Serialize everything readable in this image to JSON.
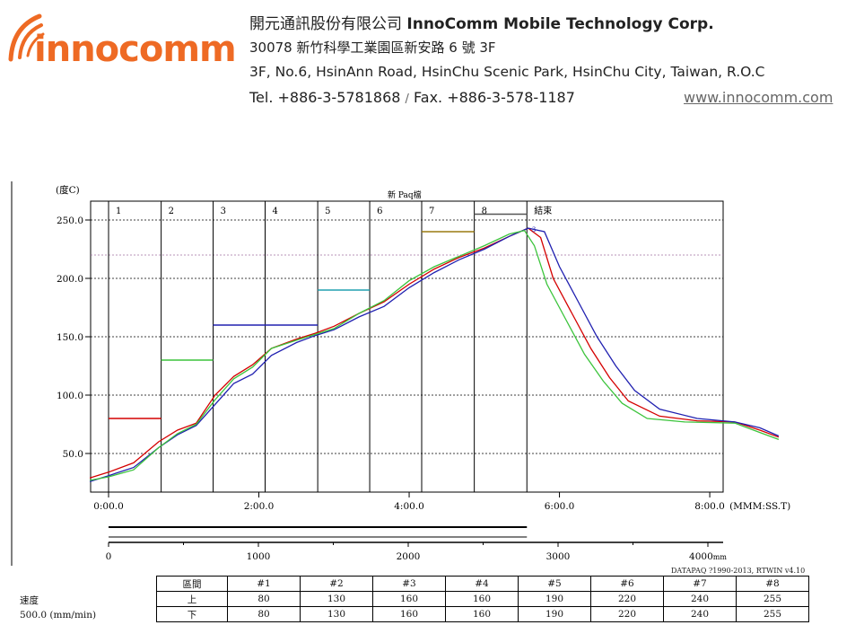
{
  "header": {
    "company_cn": "開元通訊股份有限公司",
    "company_en": "InnoComm Mobile Technology Corp.",
    "address_cn": "30078 新竹科學工業園區新安路 6 號 3F",
    "address_en": "3F, No.6, HsinAnn Road, HsinChu Scenic Park, HsinChu City, Taiwan, R.O.C",
    "tel": "Tel. +886-3-5781868",
    "sep": "/",
    "fax": "Fax. +886-3-578-1187",
    "website": "www.innocomm.com",
    "logo_text": "innocomm"
  },
  "chart_data": {
    "type": "line",
    "title": "新 Paq檔",
    "ylabel": "(度C)",
    "xlabel": "(MMM:SS.T)",
    "x_unit": "seconds",
    "xlim": [
      -22,
      540
    ],
    "ylim": [
      25,
      270
    ],
    "y_ticks": [
      "250.0",
      "200.0",
      "150.0",
      "100.0",
      "50.0"
    ],
    "y_tick_values": [
      250,
      200,
      150,
      100,
      50
    ],
    "x_tick_labels": [
      "0:00.0",
      "2:00.0",
      "4:00.0",
      "6:00.0",
      "8:00.0"
    ],
    "x_tick_values": [
      0,
      120,
      240,
      360,
      480
    ],
    "reference_line": 220,
    "zones": [
      "1",
      "2",
      "3",
      "4",
      "5",
      "6",
      "7",
      "8",
      "結束"
    ],
    "zone_boundaries": [
      0,
      42,
      83.5,
      125,
      167,
      208.5,
      250,
      292,
      334
    ],
    "zone_setpoints": [
      {
        "zone": "1",
        "value": 80,
        "color": "#d40000"
      },
      {
        "zone": "2",
        "value": 130,
        "color": "#3cc43c"
      },
      {
        "zone": "3-4",
        "value": 160,
        "color": "#2020b0"
      },
      {
        "zone": "5",
        "value": 190,
        "color": "#20a0b0"
      },
      {
        "zone": "7",
        "value": 240,
        "color": "#9a7a10"
      },
      {
        "zone": "8",
        "value": 255,
        "color": "#555555"
      }
    ],
    "peak_marker": "3",
    "series": [
      {
        "color": "#d40000",
        "points": [
          [
            -15,
            29
          ],
          [
            0,
            34
          ],
          [
            20,
            42
          ],
          [
            40,
            60
          ],
          [
            55,
            70
          ],
          [
            70,
            76
          ],
          [
            85,
            100
          ],
          [
            100,
            116
          ],
          [
            115,
            126
          ],
          [
            130,
            140
          ],
          [
            150,
            148
          ],
          [
            165,
            153
          ],
          [
            180,
            159
          ],
          [
            200,
            170
          ],
          [
            220,
            180
          ],
          [
            240,
            195
          ],
          [
            260,
            208
          ],
          [
            280,
            218
          ],
          [
            300,
            226
          ],
          [
            320,
            236
          ],
          [
            335,
            243
          ],
          [
            345,
            235
          ],
          [
            355,
            200
          ],
          [
            370,
            170
          ],
          [
            385,
            140
          ],
          [
            400,
            115
          ],
          [
            415,
            95
          ],
          [
            440,
            82
          ],
          [
            470,
            78
          ],
          [
            500,
            77
          ],
          [
            520,
            70
          ],
          [
            535,
            64
          ]
        ]
      },
      {
        "color": "#2020b0",
        "points": [
          [
            -15,
            26
          ],
          [
            0,
            31
          ],
          [
            20,
            38
          ],
          [
            40,
            55
          ],
          [
            55,
            66
          ],
          [
            70,
            74
          ],
          [
            85,
            92
          ],
          [
            100,
            110
          ],
          [
            115,
            118
          ],
          [
            130,
            134
          ],
          [
            150,
            145
          ],
          [
            165,
            151
          ],
          [
            180,
            156
          ],
          [
            200,
            167
          ],
          [
            220,
            176
          ],
          [
            240,
            192
          ],
          [
            260,
            205
          ],
          [
            280,
            216
          ],
          [
            300,
            225
          ],
          [
            320,
            236
          ],
          [
            335,
            243
          ],
          [
            348,
            240
          ],
          [
            360,
            210
          ],
          [
            375,
            180
          ],
          [
            390,
            150
          ],
          [
            405,
            125
          ],
          [
            420,
            104
          ],
          [
            440,
            88
          ],
          [
            470,
            80
          ],
          [
            500,
            77
          ],
          [
            520,
            72
          ],
          [
            535,
            65
          ]
        ]
      },
      {
        "color": "#3cc43c",
        "points": [
          [
            -15,
            27
          ],
          [
            0,
            30
          ],
          [
            20,
            36
          ],
          [
            40,
            55
          ],
          [
            55,
            67
          ],
          [
            70,
            75
          ],
          [
            85,
            96
          ],
          [
            100,
            114
          ],
          [
            115,
            124
          ],
          [
            130,
            140
          ],
          [
            150,
            147
          ],
          [
            165,
            152
          ],
          [
            180,
            157
          ],
          [
            200,
            170
          ],
          [
            220,
            181
          ],
          [
            240,
            198
          ],
          [
            260,
            210
          ],
          [
            280,
            219
          ],
          [
            300,
            228
          ],
          [
            320,
            238
          ],
          [
            332,
            241
          ],
          [
            340,
            228
          ],
          [
            350,
            195
          ],
          [
            365,
            165
          ],
          [
            380,
            135
          ],
          [
            395,
            112
          ],
          [
            410,
            93
          ],
          [
            430,
            80
          ],
          [
            460,
            77
          ],
          [
            500,
            76
          ],
          [
            520,
            68
          ],
          [
            535,
            62
          ]
        ]
      }
    ],
    "distance_ticks": [
      "0",
      "1000",
      "2000",
      "3000",
      "4000"
    ],
    "distance_unit": "mm",
    "credit": "DATAPAQ ?1990-2013, RTWIN v4.10"
  },
  "zone_table": {
    "header_label": "區間",
    "columns": [
      "#1",
      "#2",
      "#3",
      "#4",
      "#5",
      "#6",
      "#7",
      "#8"
    ],
    "upper_label": "上",
    "lower_label": "下",
    "upper": [
      "80",
      "130",
      "160",
      "160",
      "190",
      "220",
      "240",
      "255"
    ],
    "lower": [
      "80",
      "130",
      "160",
      "160",
      "190",
      "220",
      "240",
      "255"
    ],
    "speed_label": "速度",
    "speed_value": "500.0 (mm/min)"
  }
}
